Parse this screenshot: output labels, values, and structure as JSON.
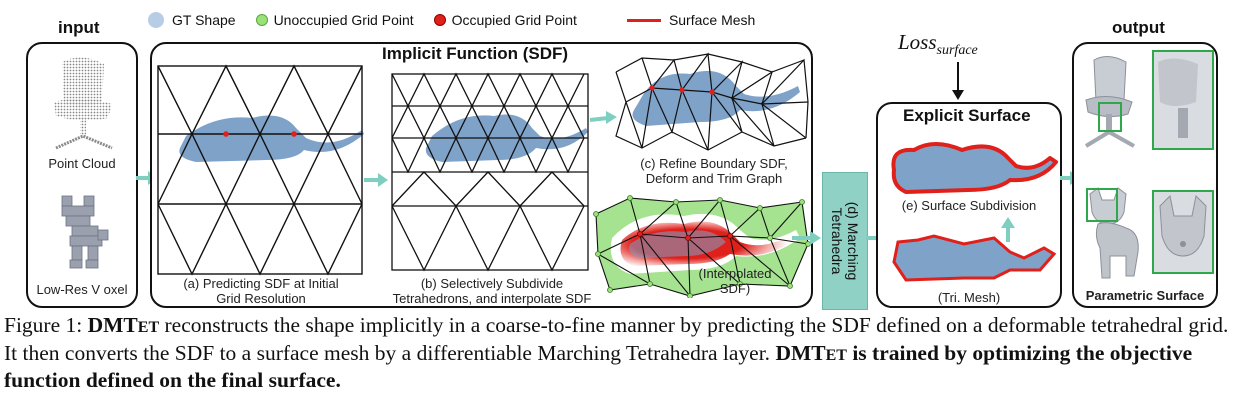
{
  "legend": {
    "gt_shape": "GT Shape",
    "unoccupied": "Unoccupied Grid Point",
    "occupied": "Occupied Grid Point",
    "surface_mesh": "Surface Mesh"
  },
  "input": {
    "title": "input",
    "point_cloud": "Point Cloud",
    "voxel": "Low-Res V oxel"
  },
  "implicit": {
    "title": "Implicit Function (SDF)",
    "a_line1": "(a) Predicting SDF at Initial",
    "a_line2": "Grid Resolution",
    "b_line1": "(b) Selectively Subdivide",
    "b_line2": "Tetrahedrons, and interpolate SDF",
    "c_line1": "(c) Refine Boundary SDF,",
    "c_line2": "Deform and Trim Graph",
    "interp_line1": "(Interpolated",
    "interp_line2": "SDF)"
  },
  "marching": {
    "line1": "(d) Marching",
    "line2": "Tetrahedra"
  },
  "loss": {
    "main": "Loss",
    "sub": "surface"
  },
  "explicit": {
    "title": "Explicit Surface",
    "subdivision": "(e) Surface Subdivision",
    "tri_mesh": "(Tri. Mesh)"
  },
  "output": {
    "title": "output",
    "parametric": "Parametric Surface"
  },
  "caption": {
    "figure_label": "Figure 1: ",
    "name_big1": "DMT",
    "name_small1": "ET",
    "text1": " reconstructs the shape implicitly in a coarse-to-fine manner by predicting the SDF defined on a deformable tetrahedral grid. It then converts the SDF to a surface mesh by a differentiable Marching Tetrahedra layer. ",
    "name_big2": "DMT",
    "name_small2": "ET",
    "text2": " is trained by optimizing the objective function defined on the final surface."
  },
  "colors": {
    "gt_shape": "#7fa2c9",
    "mesh_red": "#e0201b",
    "mt_box": "#8fd1c4",
    "arrow": "#7fcfc0",
    "green_box": "#2ea84a"
  }
}
